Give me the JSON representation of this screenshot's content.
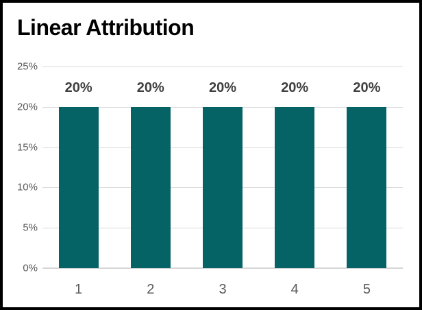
{
  "window": {
    "background_color": "#ffffff",
    "border_color": "#000000"
  },
  "chart": {
    "title": "Linear Attribution"
  },
  "chart_data": {
    "type": "bar",
    "title": "Linear Attribution",
    "categories": [
      "1",
      "2",
      "3",
      "4",
      "5"
    ],
    "values": [
      20,
      20,
      20,
      20,
      20
    ],
    "data_labels": [
      "20%",
      "20%",
      "20%",
      "20%",
      "20%"
    ],
    "y_ticks": [
      {
        "value": 0,
        "label": "0%"
      },
      {
        "value": 5,
        "label": "5%"
      },
      {
        "value": 10,
        "label": "10%"
      },
      {
        "value": 15,
        "label": "15%"
      },
      {
        "value": 20,
        "label": "20%"
      },
      {
        "value": 25,
        "label": "25%"
      }
    ],
    "ylim": [
      0,
      25
    ],
    "xlabel": "",
    "ylabel": "",
    "grid": true,
    "legend": false,
    "bar_color": "#056265",
    "data_label_color": "#3f3f3f",
    "axis_text_color": "#595959",
    "gridline_color": "#d9d9d9",
    "axis_line_color": "#d6d6d6"
  }
}
